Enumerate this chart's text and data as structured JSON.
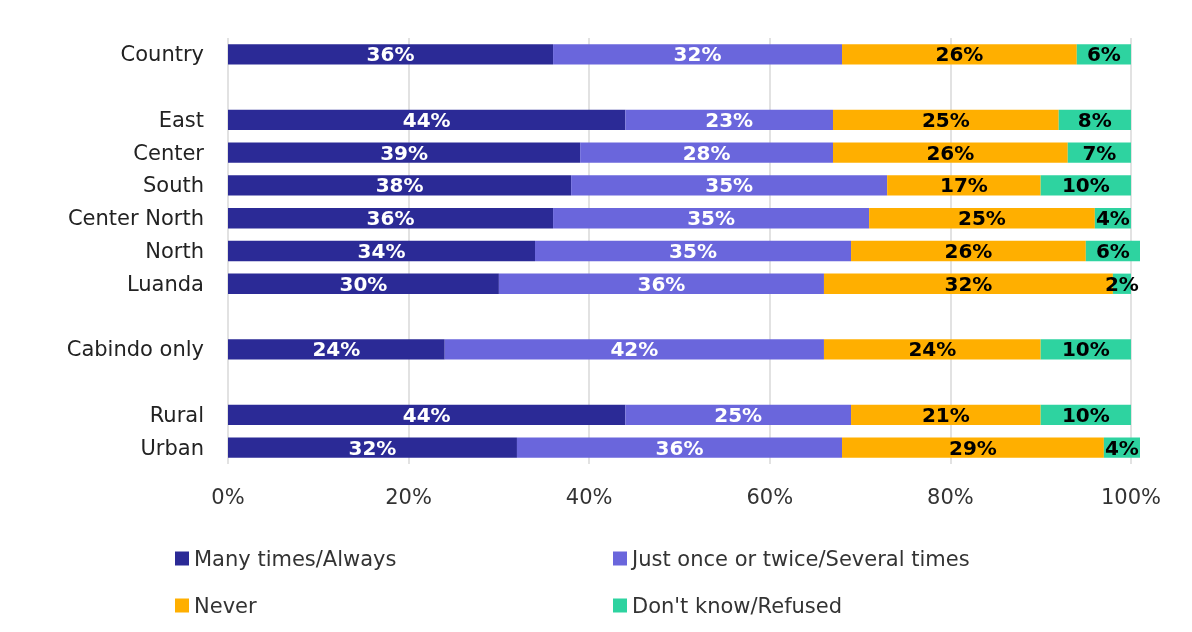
{
  "chart_data": {
    "type": "bar",
    "orientation": "horizontal",
    "stacked": true,
    "categories": [
      "Country",
      null,
      "East",
      "Center",
      "South",
      "Center North",
      "North",
      "Luanda",
      null,
      "Cabindo only",
      null,
      "Rural",
      "Urban"
    ],
    "series": [
      {
        "name": "Many times/Always",
        "color": "#2b2a96",
        "values": [
          36,
          null,
          44,
          39,
          38,
          36,
          34,
          30,
          null,
          24,
          null,
          44,
          32
        ],
        "value_labels": [
          "36%",
          null,
          "44%",
          "39%",
          "38%",
          "36%",
          "34%",
          "30%",
          null,
          "24%",
          null,
          "44%",
          "32%"
        ]
      },
      {
        "name": "Just once or twice/Several times",
        "color": "#6a66dc",
        "values": [
          32,
          null,
          23,
          28,
          35,
          35,
          35,
          36,
          null,
          42,
          null,
          25,
          36
        ],
        "value_labels": [
          "32%",
          null,
          "23%",
          "28%",
          "35%",
          "35%",
          "35%",
          "36%",
          null,
          "42%",
          null,
          "25%",
          "36%"
        ]
      },
      {
        "name": "Never",
        "color": "#ffaf00",
        "values": [
          26,
          null,
          25,
          26,
          17,
          25,
          26,
          32,
          null,
          24,
          null,
          21,
          29
        ],
        "value_labels": [
          "26%",
          null,
          "25%",
          "26%",
          "17%",
          "25%",
          "26%",
          "32%",
          null,
          "24%",
          null,
          "21%",
          "29%"
        ]
      },
      {
        "name": "Don't know/Refused",
        "color": "#2ed3a0",
        "values": [
          6,
          null,
          8,
          7,
          10,
          4,
          6,
          2,
          null,
          10,
          null,
          10,
          4
        ],
        "value_labels": [
          "6%",
          null,
          "8%",
          "7%",
          "10%",
          "4%",
          "6%",
          "2%",
          null,
          "10%",
          null,
          "10%",
          "4%"
        ]
      }
    ],
    "xlim": [
      0,
      101
    ],
    "xticks": [
      {
        "value": 0,
        "label": "0%"
      },
      {
        "value": 20,
        "label": "20%"
      },
      {
        "value": 40,
        "label": "40%"
      },
      {
        "value": 60,
        "label": "60%"
      },
      {
        "value": 80,
        "label": "80%"
      },
      {
        "value": 100,
        "label": "100%"
      }
    ],
    "grid": "x",
    "legend": "bottom"
  }
}
